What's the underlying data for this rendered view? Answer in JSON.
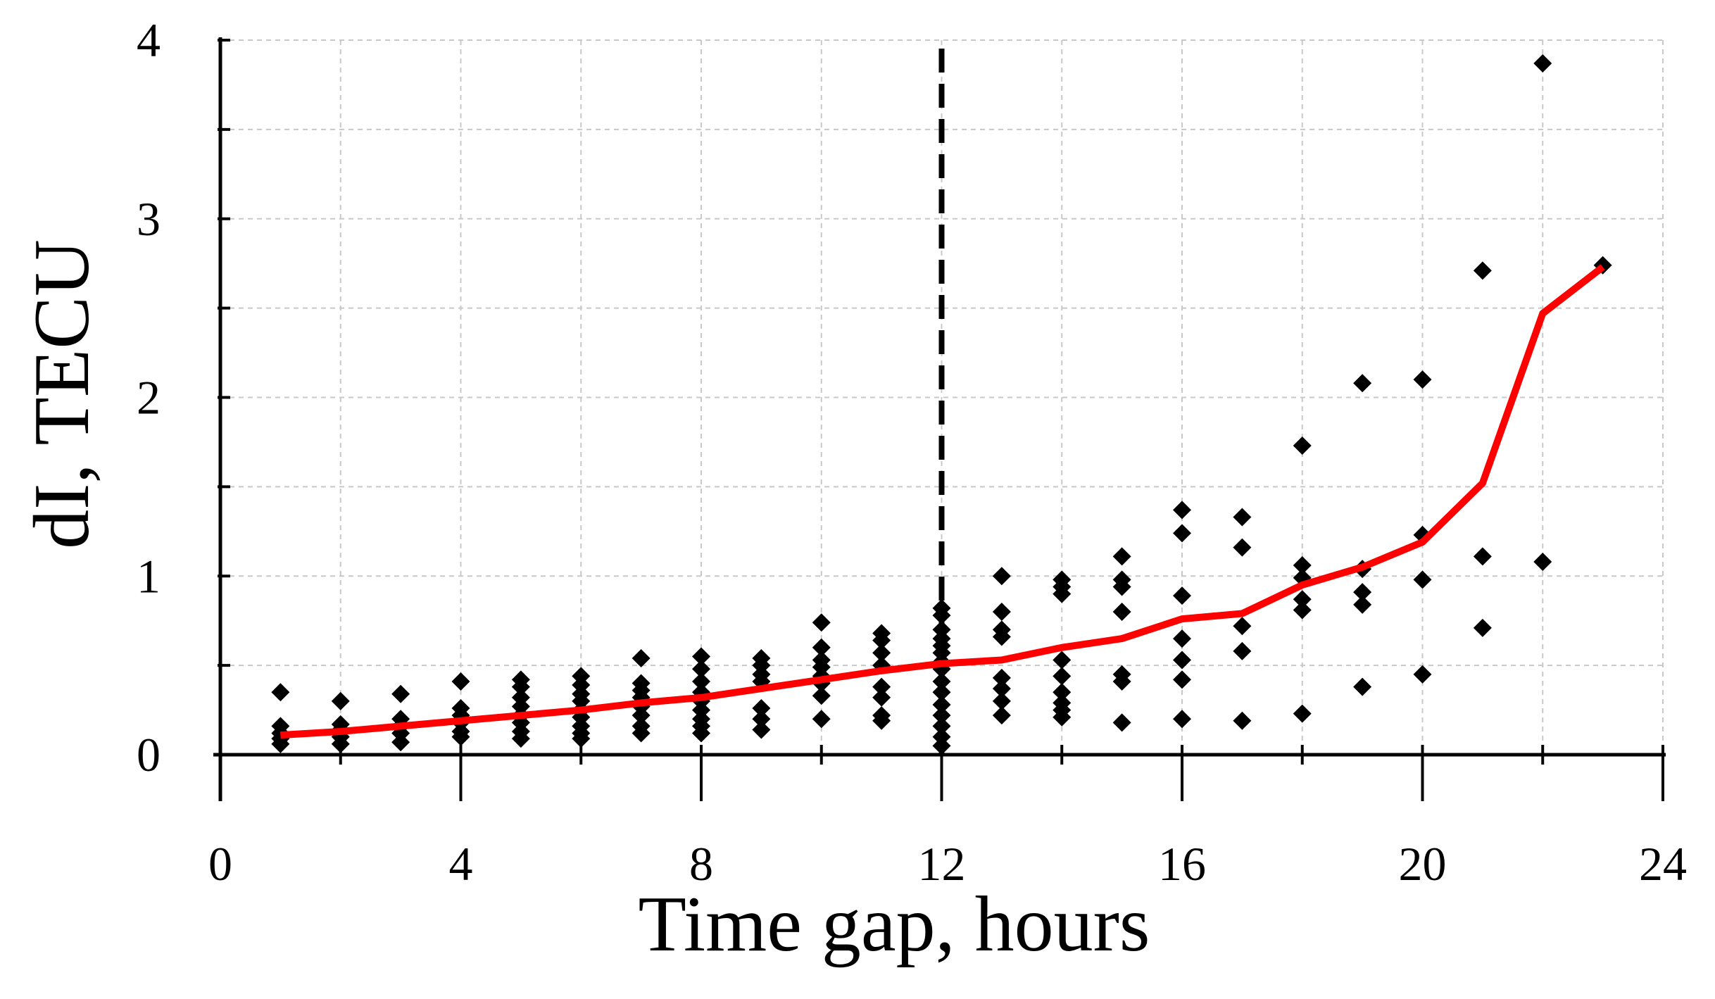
{
  "chart_data": {
    "type": "scatter",
    "title": "",
    "xlabel": "Time gap, hours",
    "ylabel": "dI, TECU",
    "xlim": [
      0,
      24
    ],
    "ylim": [
      0,
      4
    ],
    "x_major_ticks": [
      "0",
      "4",
      "8",
      "12",
      "16",
      "20",
      "24"
    ],
    "y_major_ticks": [
      "0",
      "1",
      "2",
      "3",
      "4"
    ],
    "x_minor_step": 2,
    "y_minor_step": 0.5,
    "grid": true,
    "vertical_line": {
      "x": 12,
      "style": "dashed",
      "color": "#000000"
    },
    "series": [
      {
        "kind": "scatter",
        "color": "#000000",
        "marker": "diamond",
        "points": [
          [
            1,
            0.35
          ],
          [
            1,
            0.16
          ],
          [
            1,
            0.12
          ],
          [
            1,
            0.09
          ],
          [
            1,
            0.06
          ],
          [
            2,
            0.3
          ],
          [
            2,
            0.17
          ],
          [
            2,
            0.14
          ],
          [
            2,
            0.1
          ],
          [
            2,
            0.06
          ],
          [
            3,
            0.34
          ],
          [
            3,
            0.2
          ],
          [
            3,
            0.16
          ],
          [
            3,
            0.12
          ],
          [
            3,
            0.07
          ],
          [
            4,
            0.41
          ],
          [
            4,
            0.26
          ],
          [
            4,
            0.22
          ],
          [
            4,
            0.18
          ],
          [
            4,
            0.13
          ],
          [
            4,
            0.1
          ],
          [
            5,
            0.42
          ],
          [
            5,
            0.38
          ],
          [
            5,
            0.32
          ],
          [
            5,
            0.27
          ],
          [
            5,
            0.22
          ],
          [
            5,
            0.18
          ],
          [
            5,
            0.13
          ],
          [
            5,
            0.09
          ],
          [
            6,
            0.44
          ],
          [
            6,
            0.39
          ],
          [
            6,
            0.34
          ],
          [
            6,
            0.3
          ],
          [
            6,
            0.25
          ],
          [
            6,
            0.21
          ],
          [
            6,
            0.16
          ],
          [
            6,
            0.12
          ],
          [
            6,
            0.09
          ],
          [
            7,
            0.54
          ],
          [
            7,
            0.4
          ],
          [
            7,
            0.36
          ],
          [
            7,
            0.32
          ],
          [
            7,
            0.27
          ],
          [
            7,
            0.22
          ],
          [
            7,
            0.16
          ],
          [
            7,
            0.12
          ],
          [
            8,
            0.55
          ],
          [
            8,
            0.48
          ],
          [
            8,
            0.41
          ],
          [
            8,
            0.35
          ],
          [
            8,
            0.3
          ],
          [
            8,
            0.25
          ],
          [
            8,
            0.2
          ],
          [
            8,
            0.16
          ],
          [
            8,
            0.12
          ],
          [
            9,
            0.54
          ],
          [
            9,
            0.5
          ],
          [
            9,
            0.45
          ],
          [
            9,
            0.41
          ],
          [
            9,
            0.26
          ],
          [
            9,
            0.2
          ],
          [
            9,
            0.14
          ],
          [
            10,
            0.74
          ],
          [
            10,
            0.6
          ],
          [
            10,
            0.53
          ],
          [
            10,
            0.49
          ],
          [
            10,
            0.44
          ],
          [
            10,
            0.4
          ],
          [
            10,
            0.33
          ],
          [
            10,
            0.2
          ],
          [
            11,
            0.68
          ],
          [
            11,
            0.64
          ],
          [
            11,
            0.57
          ],
          [
            11,
            0.5
          ],
          [
            11,
            0.38
          ],
          [
            11,
            0.32
          ],
          [
            11,
            0.22
          ],
          [
            11,
            0.19
          ],
          [
            12,
            0.82
          ],
          [
            12,
            0.78
          ],
          [
            12,
            0.7
          ],
          [
            12,
            0.65
          ],
          [
            12,
            0.61
          ],
          [
            12,
            0.57
          ],
          [
            12,
            0.52
          ],
          [
            12,
            0.48
          ],
          [
            12,
            0.41
          ],
          [
            12,
            0.35
          ],
          [
            12,
            0.28
          ],
          [
            12,
            0.22
          ],
          [
            12,
            0.16
          ],
          [
            12,
            0.1
          ],
          [
            12,
            0.05
          ],
          [
            13,
            1.0
          ],
          [
            13,
            0.8
          ],
          [
            13,
            0.7
          ],
          [
            13,
            0.66
          ],
          [
            13,
            0.43
          ],
          [
            13,
            0.37
          ],
          [
            13,
            0.3
          ],
          [
            13,
            0.22
          ],
          [
            14,
            0.98
          ],
          [
            14,
            0.94
          ],
          [
            14,
            0.9
          ],
          [
            14,
            0.53
          ],
          [
            14,
            0.44
          ],
          [
            14,
            0.35
          ],
          [
            14,
            0.29
          ],
          [
            14,
            0.25
          ],
          [
            14,
            0.21
          ],
          [
            15,
            1.11
          ],
          [
            15,
            0.98
          ],
          [
            15,
            0.94
          ],
          [
            15,
            0.8
          ],
          [
            15,
            0.45
          ],
          [
            15,
            0.41
          ],
          [
            15,
            0.18
          ],
          [
            16,
            1.37
          ],
          [
            16,
            1.24
          ],
          [
            16,
            0.89
          ],
          [
            16,
            0.65
          ],
          [
            16,
            0.53
          ],
          [
            16,
            0.42
          ],
          [
            16,
            0.2
          ],
          [
            17,
            1.33
          ],
          [
            17,
            1.16
          ],
          [
            17,
            0.72
          ],
          [
            17,
            0.58
          ],
          [
            17,
            0.19
          ],
          [
            18,
            1.73
          ],
          [
            18,
            1.06
          ],
          [
            18,
            0.99
          ],
          [
            18,
            0.87
          ],
          [
            18,
            0.81
          ],
          [
            18,
            0.23
          ],
          [
            19,
            2.08
          ],
          [
            19,
            1.04
          ],
          [
            19,
            0.91
          ],
          [
            19,
            0.84
          ],
          [
            19,
            0.38
          ],
          [
            20,
            2.1
          ],
          [
            20,
            1.23
          ],
          [
            20,
            0.98
          ],
          [
            20,
            0.45
          ],
          [
            21,
            2.71
          ],
          [
            21,
            1.11
          ],
          [
            21,
            0.71
          ],
          [
            22,
            3.87
          ],
          [
            22,
            1.08
          ],
          [
            23,
            2.74
          ]
        ]
      },
      {
        "kind": "line",
        "color": "#ff0000",
        "points": [
          [
            1,
            0.11
          ],
          [
            2,
            0.13
          ],
          [
            3,
            0.16
          ],
          [
            4,
            0.19
          ],
          [
            5,
            0.22
          ],
          [
            6,
            0.25
          ],
          [
            7,
            0.29
          ],
          [
            8,
            0.32
          ],
          [
            9,
            0.37
          ],
          [
            10,
            0.42
          ],
          [
            11,
            0.47
          ],
          [
            12,
            0.51
          ],
          [
            13,
            0.53
          ],
          [
            14,
            0.6
          ],
          [
            15,
            0.65
          ],
          [
            16,
            0.76
          ],
          [
            17,
            0.79
          ],
          [
            18,
            0.95
          ],
          [
            19,
            1.05
          ],
          [
            20,
            1.19
          ],
          [
            21,
            1.52
          ],
          [
            22,
            2.47
          ],
          [
            23,
            2.73
          ]
        ]
      }
    ]
  }
}
